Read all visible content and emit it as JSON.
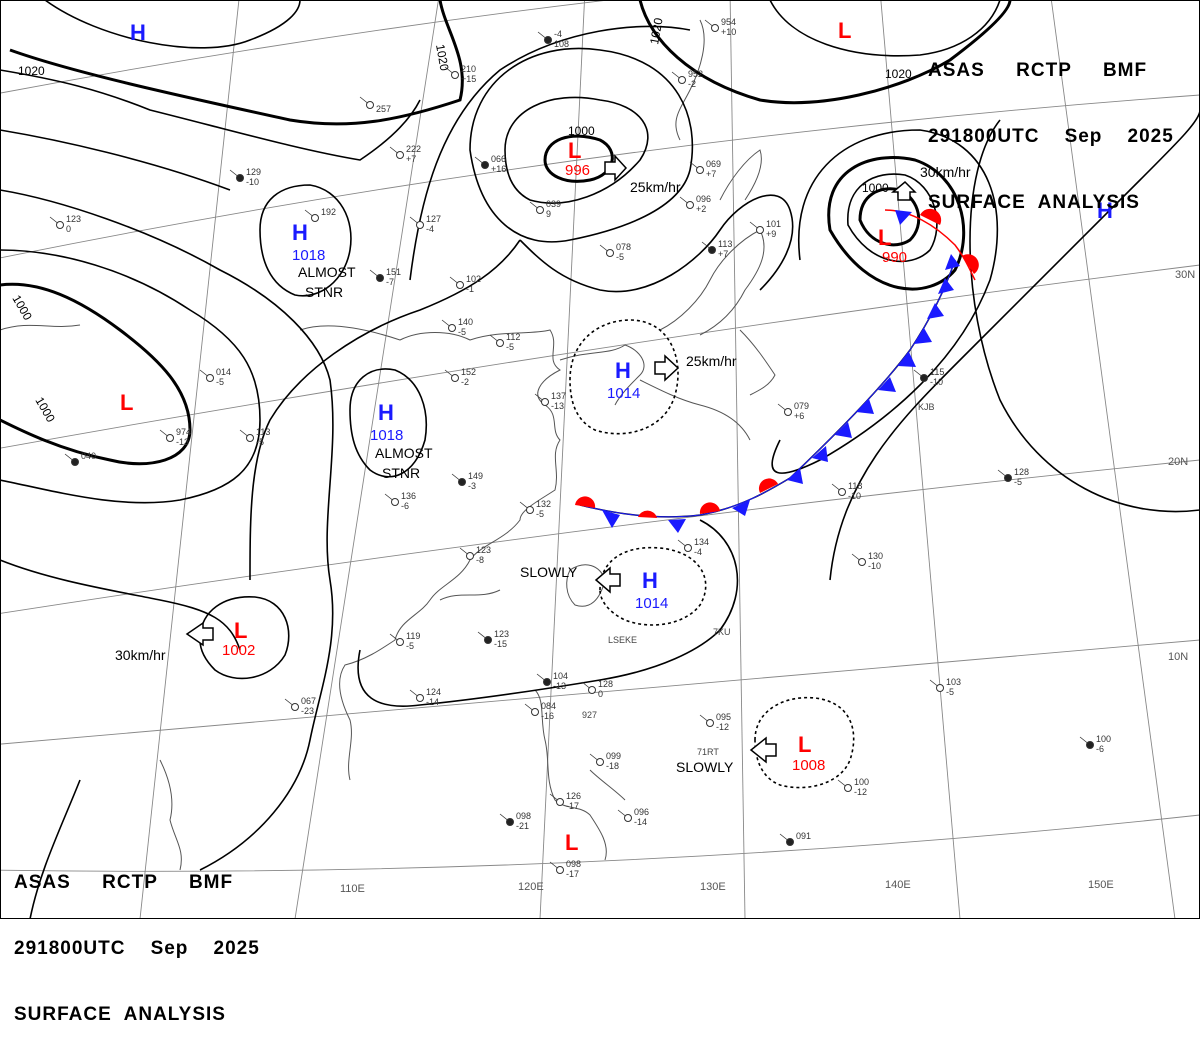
{
  "header_top": {
    "line1": "ASAS     RCTP     BMF",
    "line2": "291800UTC    Sep    2025",
    "line3": "SURFACE  ANALYSIS"
  },
  "header_bottom": {
    "line1": "ASAS     RCTP     BMF",
    "line2": "291800UTC    Sep    2025",
    "line3": "SURFACE  ANALYSIS"
  },
  "colors": {
    "high": "#1a1aff",
    "low": "#ff0000",
    "lines": "#000000",
    "grid": "#888888",
    "coast": "#555555"
  },
  "lat_labels": [
    "30N",
    "20N",
    "10N"
  ],
  "lon_labels": [
    "110E",
    "120E",
    "130E",
    "140E",
    "150E"
  ],
  "isobar_labels": [
    "1020",
    "1020",
    "1020",
    "1020",
    "1000",
    "1000",
    "1000",
    "1000"
  ],
  "pressure_centers": [
    {
      "type": "H",
      "value": ""
    },
    {
      "type": "L",
      "value": ""
    },
    {
      "type": "L",
      "value": "996"
    },
    {
      "type": "H",
      "value": "1018"
    },
    {
      "type": "L",
      "value": ""
    },
    {
      "type": "H",
      "value": "1018"
    },
    {
      "type": "H",
      "value": "1014"
    },
    {
      "type": "L",
      "value": "990"
    },
    {
      "type": "H",
      "value": ""
    },
    {
      "type": "H",
      "value": "1014"
    },
    {
      "type": "L",
      "value": "1002"
    },
    {
      "type": "L",
      "value": "1008"
    },
    {
      "type": "L",
      "value": ""
    }
  ],
  "motions": [
    {
      "text": "25km/hr"
    },
    {
      "text": "25km/hr"
    },
    {
      "text": "30km/hr"
    },
    {
      "text": "30km/hr"
    },
    {
      "text": "SLOWLY"
    },
    {
      "text": "SLOWLY"
    }
  ],
  "stationary_notes": [
    {
      "line1": "ALMOST",
      "line2": "STNR"
    },
    {
      "line1": "ALMOST",
      "line2": "STNR"
    }
  ],
  "station_plots": [
    {
      "a": "-4",
      "b": "108"
    },
    {
      "a": "210",
      "b": "+15"
    },
    {
      "a": "",
      "b": "257"
    },
    {
      "a": "222",
      "b": "+7"
    },
    {
      "a": "066",
      "b": "+16"
    },
    {
      "a": "039",
      "b": "9"
    },
    {
      "a": "069",
      "b": "+7"
    },
    {
      "a": "096",
      "b": "+2"
    },
    {
      "a": "113",
      "b": "+7"
    },
    {
      "a": "101",
      "b": "+9"
    },
    {
      "a": "078",
      "b": "-5"
    },
    {
      "a": "127",
      "b": "-4"
    },
    {
      "a": "151",
      "b": "-7"
    },
    {
      "a": "102",
      "b": "-1"
    },
    {
      "a": "140",
      "b": "-5"
    },
    {
      "a": "112",
      "b": "-5"
    },
    {
      "a": "129",
      "b": "-10"
    },
    {
      "a": "123",
      "b": "0"
    },
    {
      "a": "014",
      "b": "-5"
    },
    {
      "a": "974",
      "b": "-13"
    },
    {
      "a": "040",
      "b": ""
    },
    {
      "a": "113",
      "b": "-5"
    },
    {
      "a": "137",
      "b": "-13"
    },
    {
      "a": "152",
      "b": "-2"
    },
    {
      "a": "149",
      "b": "-3"
    },
    {
      "a": "136",
      "b": "-6"
    },
    {
      "a": "132",
      "b": "-5"
    },
    {
      "a": "123",
      "b": "-8"
    },
    {
      "a": "128",
      "b": "-5"
    },
    {
      "a": "118",
      "b": "-10"
    },
    {
      "a": "130",
      "b": "-10"
    },
    {
      "a": "103",
      "b": "-5"
    },
    {
      "a": "100",
      "b": "-6"
    },
    {
      "a": "095",
      "b": "-12"
    },
    {
      "a": "100",
      "b": "-12"
    },
    {
      "a": "099",
      "b": "-18"
    },
    {
      "a": "098",
      "b": "-21"
    },
    {
      "a": "126",
      "b": "-17"
    },
    {
      "a": "096",
      "b": "-14"
    },
    {
      "a": "098",
      "b": "-17"
    },
    {
      "a": "091",
      "b": ""
    },
    {
      "a": "067",
      "b": "-23"
    },
    {
      "a": "124",
      "b": "-14"
    },
    {
      "a": "119",
      "b": "-5"
    },
    {
      "a": "123",
      "b": "-15"
    },
    {
      "a": "954",
      "b": "+10"
    },
    {
      "a": "952",
      "b": "-2"
    },
    {
      "a": "079",
      "b": "+6"
    },
    {
      "a": "115",
      "b": "-10"
    },
    {
      "a": "192",
      "b": ""
    },
    {
      "a": "134",
      "b": "-4"
    },
    {
      "a": "084",
      "b": "-16"
    },
    {
      "a": "104",
      "b": "-13"
    },
    {
      "a": "128",
      "b": "0"
    }
  ],
  "place_labels": [
    "LSEKE",
    "KJB",
    "7KU",
    "71RT",
    "927"
  ]
}
